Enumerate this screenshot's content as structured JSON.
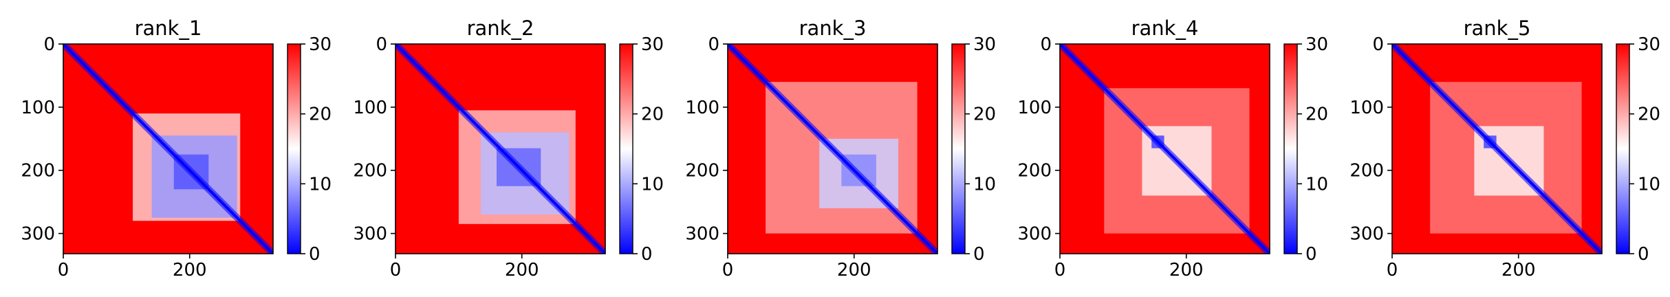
{
  "chart_data": [
    {
      "type": "heatmap",
      "title": "rank_1",
      "xlim": [
        0,
        332
      ],
      "ylim": [
        332,
        0
      ],
      "x_ticks": [
        0,
        200
      ],
      "y_ticks": [
        0,
        100,
        200,
        300
      ],
      "colorbar": {
        "min": 0,
        "max": 30,
        "ticks": [
          0,
          10,
          20,
          30
        ],
        "colormap": [
          "#0000ff",
          "#ffffff",
          "#ff0000"
        ]
      },
      "low_blocks": [
        {
          "x": [
            110,
            280
          ],
          "y": [
            110,
            280
          ],
          "value": 18
        },
        {
          "x": [
            140,
            275
          ],
          "y": [
            145,
            275
          ],
          "value": 9
        },
        {
          "x": [
            175,
            230
          ],
          "y": [
            175,
            230
          ],
          "value": 5
        }
      ]
    },
    {
      "type": "heatmap",
      "title": "rank_2",
      "xlim": [
        0,
        332
      ],
      "ylim": [
        332,
        0
      ],
      "x_ticks": [
        0,
        200
      ],
      "y_ticks": [
        0,
        100,
        200,
        300
      ],
      "colorbar": {
        "min": 0,
        "max": 30,
        "ticks": [
          0,
          10,
          20,
          30
        ],
        "colormap": [
          "#0000ff",
          "#ffffff",
          "#ff0000"
        ]
      },
      "low_blocks": [
        {
          "x": [
            100,
            285
          ],
          "y": [
            105,
            285
          ],
          "value": 19
        },
        {
          "x": [
            135,
            275
          ],
          "y": [
            140,
            270
          ],
          "value": 11
        },
        {
          "x": [
            160,
            230
          ],
          "y": [
            165,
            225
          ],
          "value": 6
        }
      ]
    },
    {
      "type": "heatmap",
      "title": "rank_3",
      "xlim": [
        0,
        332
      ],
      "ylim": [
        332,
        0
      ],
      "x_ticks": [
        0,
        200
      ],
      "y_ticks": [
        0,
        100,
        200,
        300
      ],
      "colorbar": {
        "min": 0,
        "max": 30,
        "ticks": [
          0,
          10,
          20,
          30
        ],
        "colormap": [
          "#0000ff",
          "#ffffff",
          "#ff0000"
        ]
      },
      "low_blocks": [
        {
          "x": [
            60,
            300
          ],
          "y": [
            60,
            300
          ],
          "value": 21
        },
        {
          "x": [
            145,
            270
          ],
          "y": [
            150,
            260
          ],
          "value": 12
        },
        {
          "x": [
            180,
            235
          ],
          "y": [
            175,
            225
          ],
          "value": 8
        }
      ]
    },
    {
      "type": "heatmap",
      "title": "rank_4",
      "xlim": [
        0,
        332
      ],
      "ylim": [
        332,
        0
      ],
      "x_ticks": [
        0,
        200
      ],
      "y_ticks": [
        0,
        100,
        200,
        300
      ],
      "colorbar": {
        "min": 0,
        "max": 30,
        "ticks": [
          0,
          10,
          20,
          30
        ],
        "colormap": [
          "#0000ff",
          "#ffffff",
          "#ff0000"
        ]
      },
      "low_blocks": [
        {
          "x": [
            70,
            300
          ],
          "y": [
            70,
            300
          ],
          "value": 23
        },
        {
          "x": [
            130,
            240
          ],
          "y": [
            130,
            240
          ],
          "value": 16
        },
        {
          "x": [
            145,
            165
          ],
          "y": [
            145,
            165
          ],
          "value": 4
        }
      ]
    },
    {
      "type": "heatmap",
      "title": "rank_5",
      "xlim": [
        0,
        332
      ],
      "ylim": [
        332,
        0
      ],
      "x_ticks": [
        0,
        200
      ],
      "y_ticks": [
        0,
        100,
        200,
        300
      ],
      "colorbar": {
        "min": 0,
        "max": 30,
        "ticks": [
          0,
          10,
          20,
          30
        ],
        "colormap": [
          "#0000ff",
          "#ffffff",
          "#ff0000"
        ]
      },
      "low_blocks": [
        {
          "x": [
            60,
            300
          ],
          "y": [
            60,
            300
          ],
          "value": 23
        },
        {
          "x": [
            130,
            240
          ],
          "y": [
            130,
            240
          ],
          "value": 16
        },
        {
          "x": [
            145,
            165
          ],
          "y": [
            145,
            165
          ],
          "value": 4
        }
      ]
    }
  ]
}
